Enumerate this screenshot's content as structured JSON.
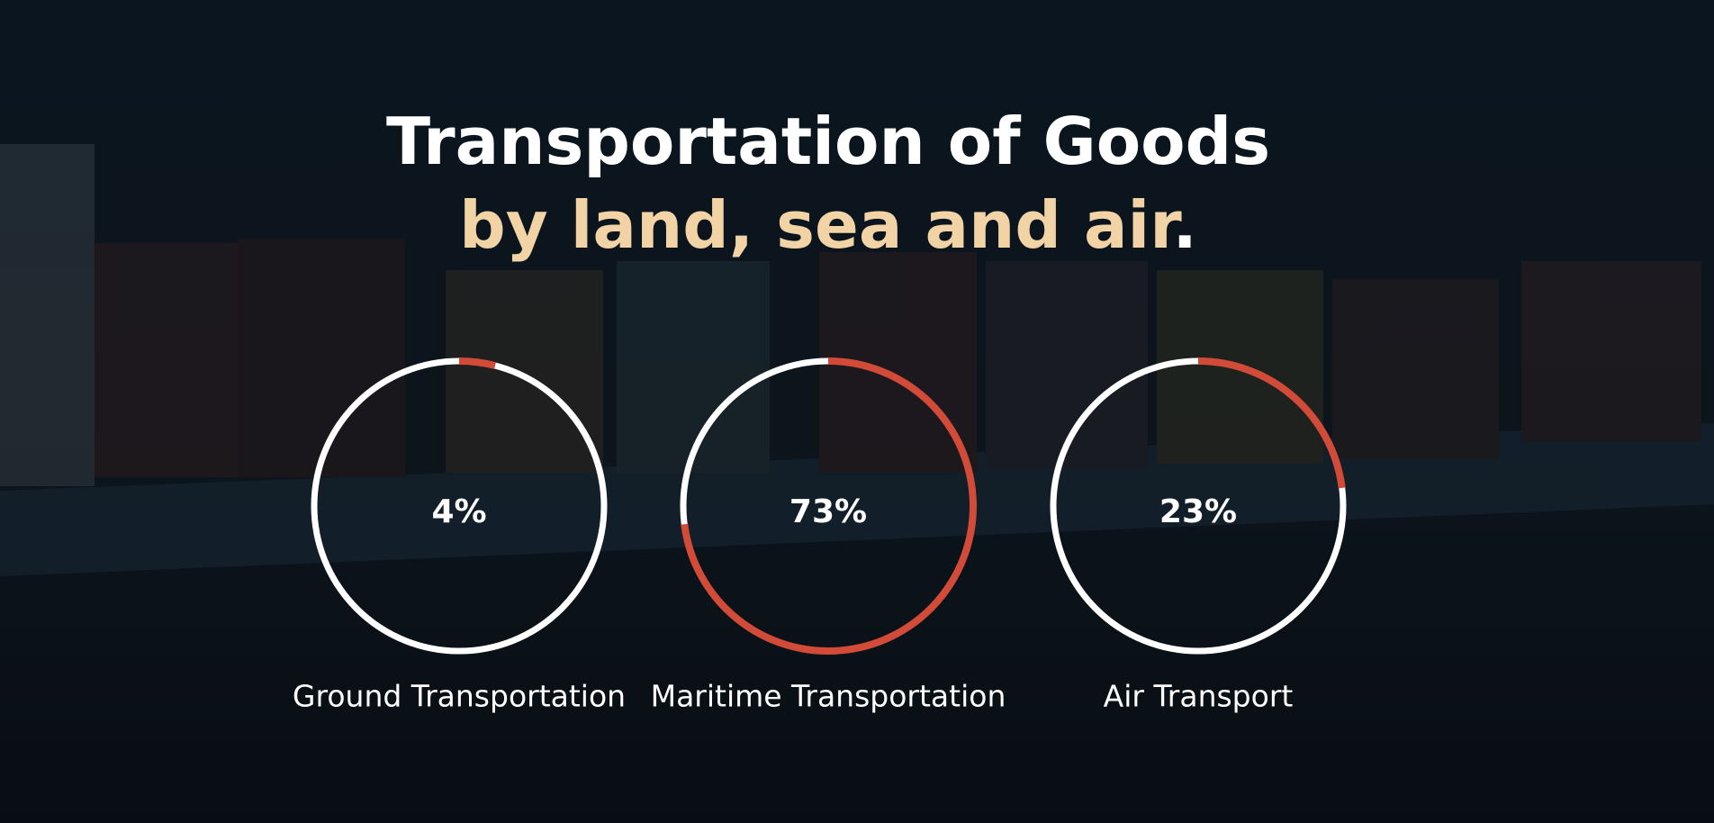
{
  "header": {
    "title": "Transportation of Goods",
    "subtitle": {
      "text": "by land, sea and air",
      "end": "."
    }
  },
  "chart_data": [
    {
      "type": "donut",
      "title": "Ground Transportation",
      "values": [
        4
      ],
      "value_labels": [
        "4%"
      ],
      "color": "#d14b38",
      "track_color": "#ffffff"
    },
    {
      "type": "donut",
      "title": "Maritime Transportation",
      "values": [
        73
      ],
      "value_labels": [
        "73%"
      ],
      "color": "#d14b38",
      "track_color": "#ffffff"
    },
    {
      "type": "donut",
      "title": "Air Transport",
      "values": [
        23
      ],
      "value_labels": [
        "23%"
      ],
      "color": "#d14b38",
      "track_color": "#ffffff"
    }
  ]
}
